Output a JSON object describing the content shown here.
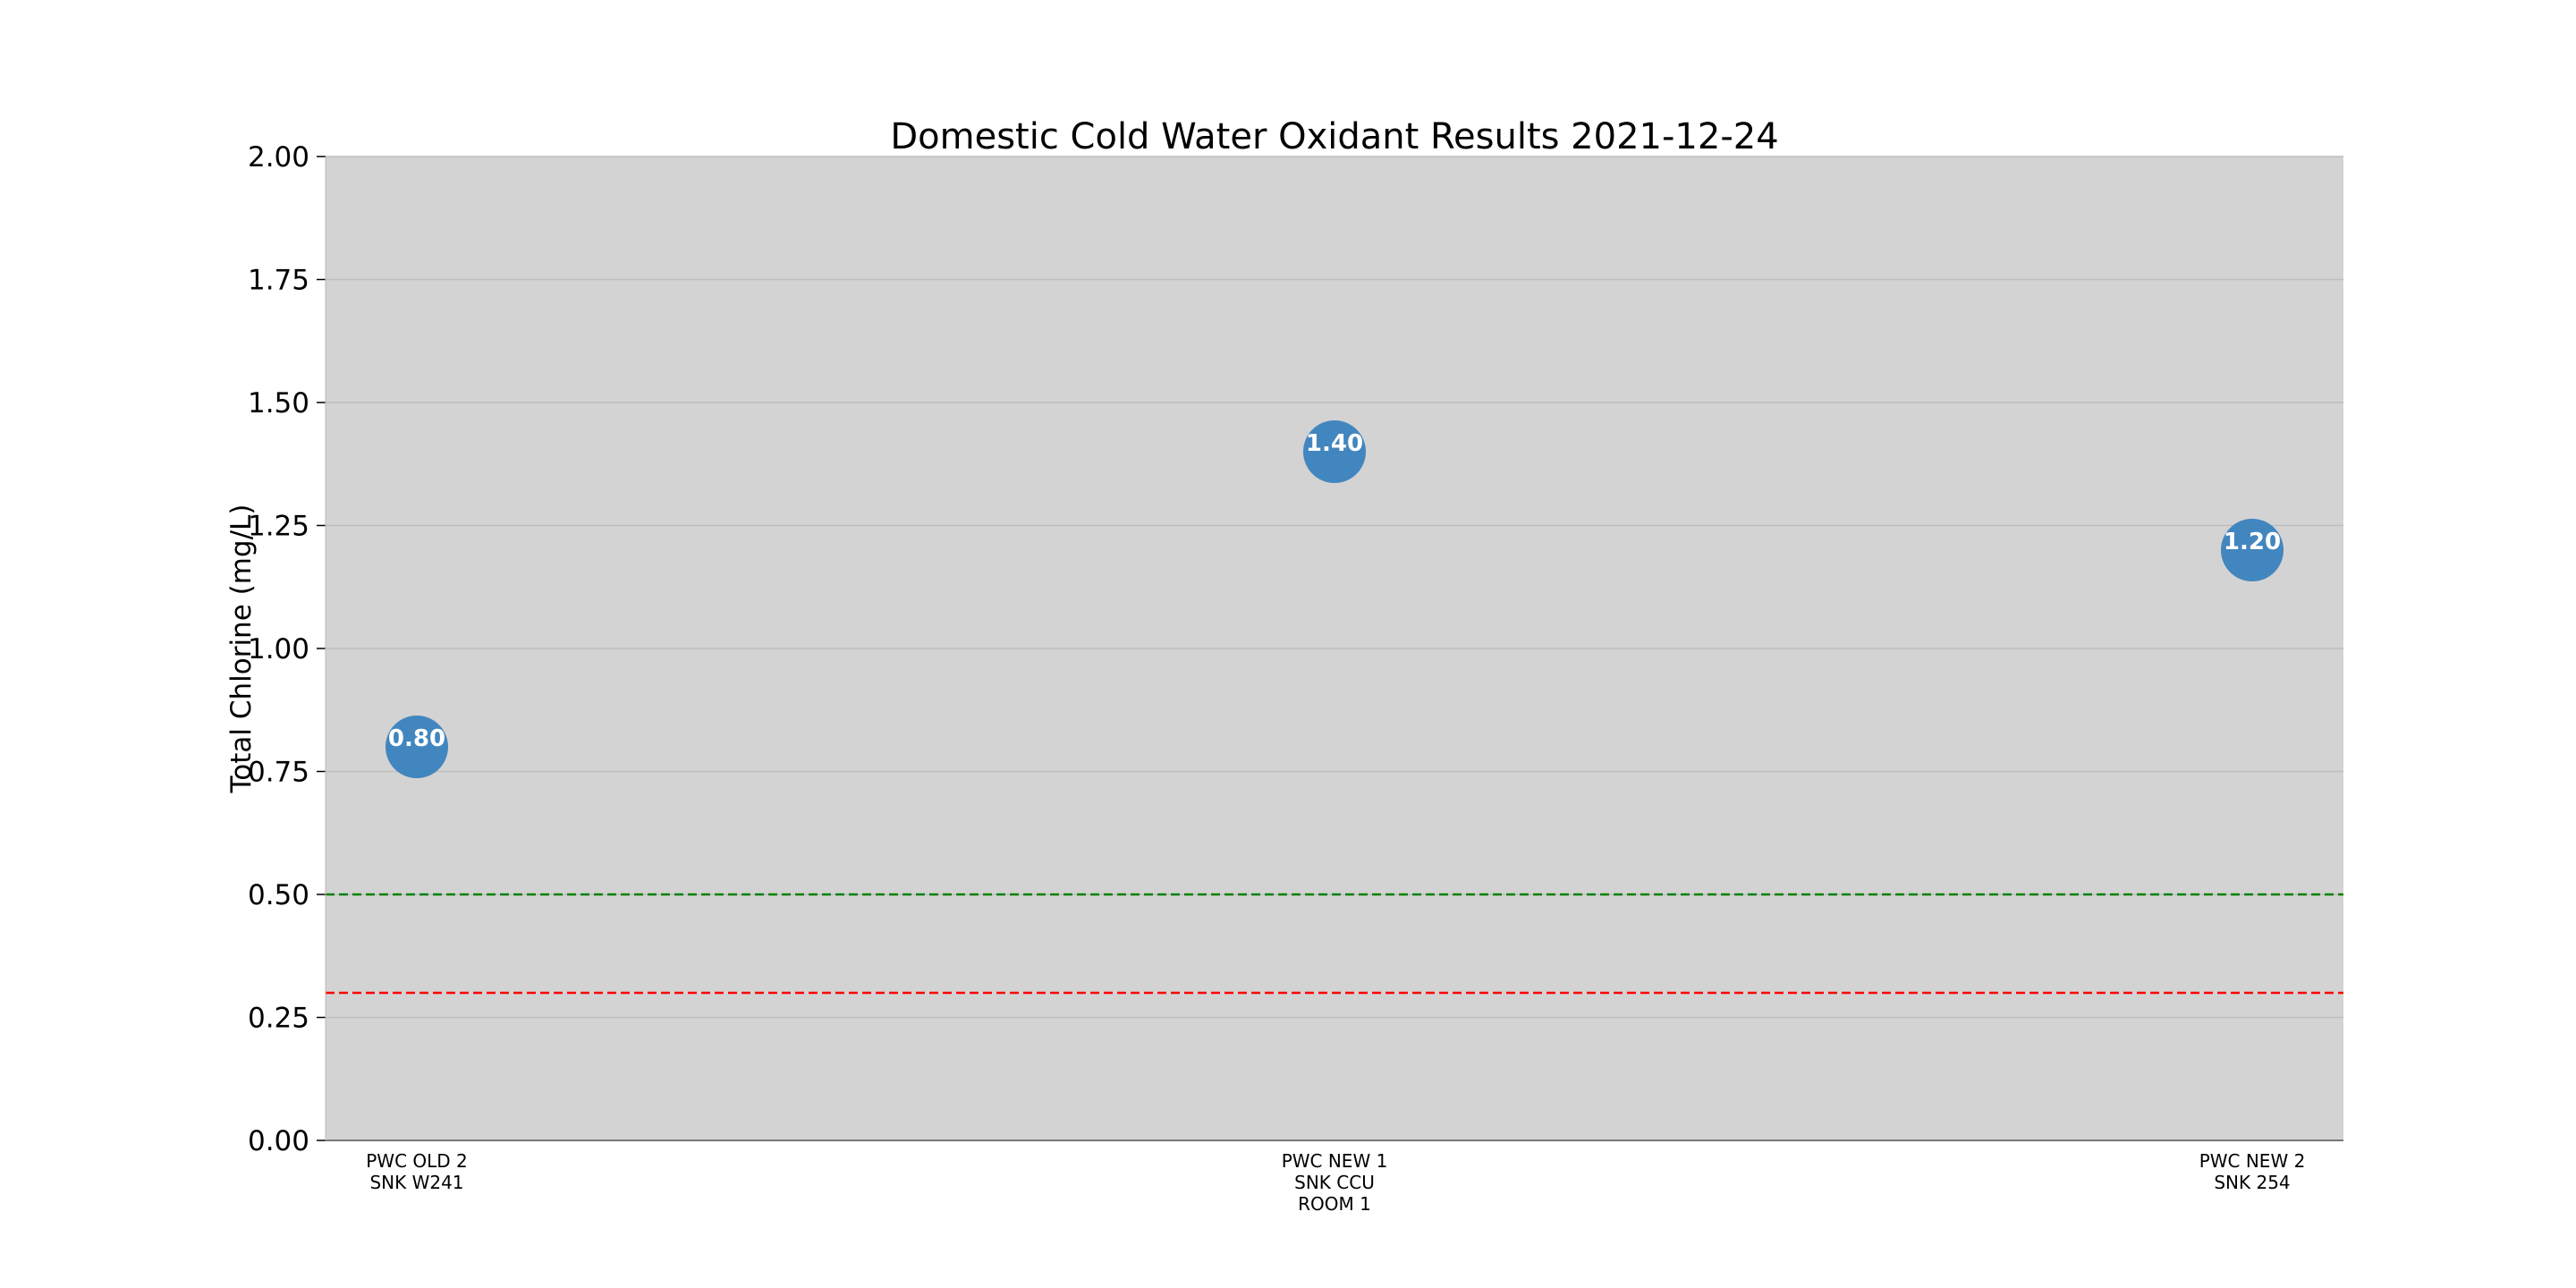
{
  "chart_data": {
    "type": "scatter",
    "title": "Domestic Cold Water Oxidant Results 2021-12-24",
    "xlabel": "",
    "ylabel": "Total Chlorine (mg/L)",
    "ylim": [
      0,
      2.0
    ],
    "yticks": [
      "0.00",
      "0.25",
      "0.50",
      "0.75",
      "1.00",
      "1.25",
      "1.50",
      "1.75",
      "2.00"
    ],
    "grid": true,
    "categories": [
      [
        "PWC OLD 2",
        "SNK W241"
      ],
      [
        "PWC NEW 1",
        "SNK CCU",
        "ROOM 1"
      ],
      [
        "PWC NEW 2",
        "SNK 254"
      ]
    ],
    "values": [
      0.8,
      1.4,
      1.2
    ],
    "point_labels": [
      "0.80",
      "1.40",
      "1.20"
    ],
    "reference_lines": [
      {
        "value": 0.5,
        "color": "#008000",
        "style": "dashed"
      },
      {
        "value": 0.3,
        "color": "#ff0000",
        "style": "dashed"
      }
    ],
    "colors": {
      "point": "#3a82be",
      "plot_background": "#d3d3d3",
      "grid": "#bdbdbd"
    }
  }
}
